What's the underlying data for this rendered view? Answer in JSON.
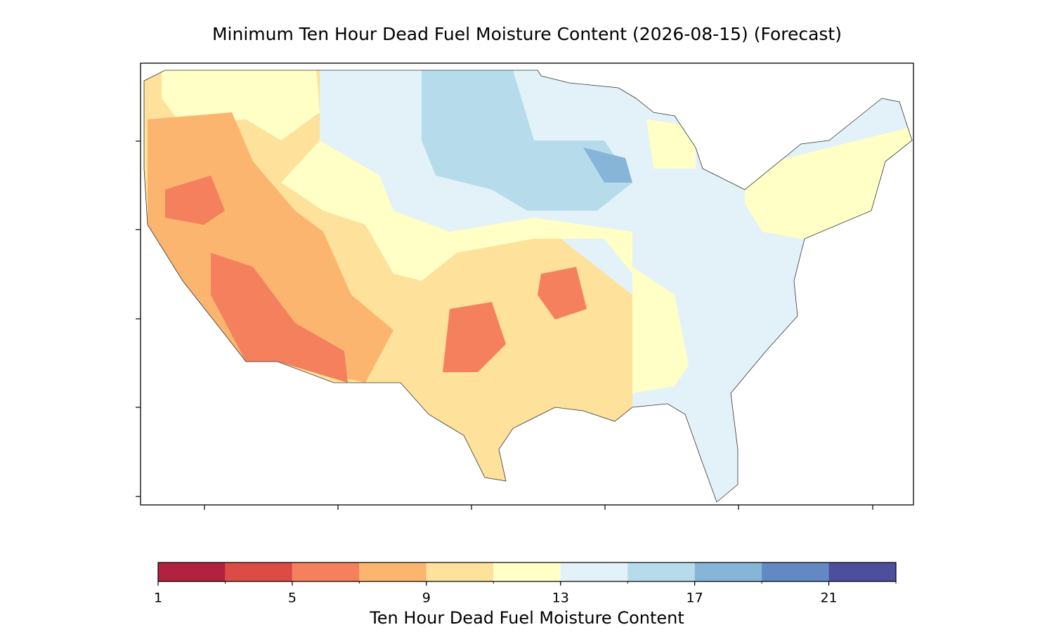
{
  "title": "Minimum Ten Hour Dead Fuel Moisture Content (2026-08-15) (Forecast)",
  "colorbar": {
    "label": "Ten Hour Dead Fuel Moisture Content",
    "boundaries": [
      1,
      3,
      5,
      7,
      9,
      11,
      13,
      15,
      17,
      19,
      21,
      23
    ],
    "colors": [
      "#b2223f",
      "#dd4b45",
      "#f4805d",
      "#fbb56f",
      "#fee19a",
      "#ffffc6",
      "#e2f2f8",
      "#b6dcec",
      "#86b5d7",
      "#6289c3",
      "#4e4e9f"
    ],
    "ticks": [
      1,
      5,
      9,
      13,
      17,
      21
    ]
  }
}
